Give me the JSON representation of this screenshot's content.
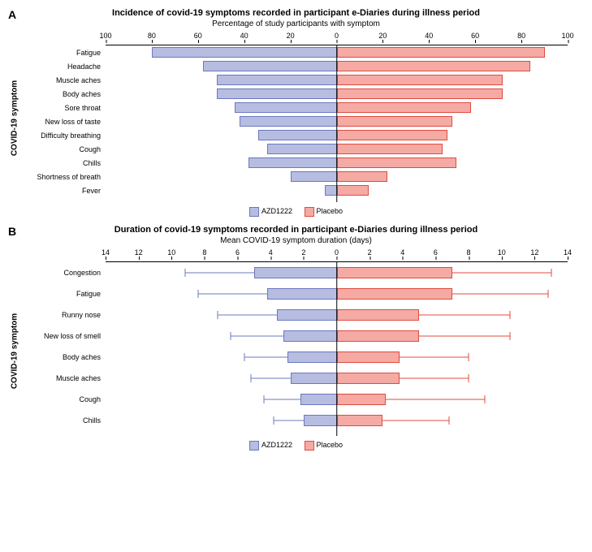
{
  "colors": {
    "azd_fill": "#b6bde0",
    "azd_border": "#6b78c0",
    "placebo_fill": "#f5aaa4",
    "placebo_border": "#e04b3f",
    "background": "#ffffff"
  },
  "panelA": {
    "label": "A",
    "title": "Incidence of covid-19 symptoms recorded in participant e-Diaries during illness period",
    "subtitle": "Percentage of study participants with symptom",
    "y_axis_label": "COVID-19 symptom",
    "type": "diverging-bar",
    "x_max": 100,
    "ticks": [
      100,
      80,
      60,
      40,
      20,
      0,
      20,
      40,
      60,
      80,
      100
    ],
    "legend": {
      "left": "AZD1222",
      "right": "Placebo"
    },
    "rows": [
      {
        "label": "Fatigue",
        "azd": 80,
        "placebo": 90
      },
      {
        "label": "Headache",
        "azd": 58,
        "placebo": 84
      },
      {
        "label": "Muscle aches",
        "azd": 52,
        "placebo": 72
      },
      {
        "label": "Body aches",
        "azd": 52,
        "placebo": 72
      },
      {
        "label": "Sore throat",
        "azd": 44,
        "placebo": 58
      },
      {
        "label": "New loss of taste",
        "azd": 42,
        "placebo": 50
      },
      {
        "label": "Difficulty breathing",
        "azd": 34,
        "placebo": 48
      },
      {
        "label": "Cough",
        "azd": 30,
        "placebo": 46
      },
      {
        "label": "Chills",
        "azd": 38,
        "placebo": 52
      },
      {
        "label": "Shortness of breath",
        "azd": 20,
        "placebo": 22
      },
      {
        "label": "Fever",
        "azd": 5,
        "placebo": 14
      }
    ]
  },
  "panelB": {
    "label": "B",
    "title": "Duration of covid-19 symptoms recorded in participant e-Diaries during illness period",
    "subtitle": "Mean COVID-19 symptom duration (days)",
    "y_axis_label": "COVID-19 symptom",
    "type": "diverging-bar-errorbar",
    "x_max": 14,
    "ticks": [
      14,
      12,
      10,
      8,
      6,
      4,
      2,
      0,
      2,
      4,
      6,
      8,
      10,
      12,
      14
    ],
    "legend": {
      "left": "AZD1222",
      "right": "Placebo"
    },
    "rows": [
      {
        "label": "Congestion",
        "azd_mean": 5.0,
        "azd_lo": 1.0,
        "azd_hi": 9.2,
        "pl_mean": 7.0,
        "pl_lo": 1.0,
        "pl_hi": 13.0
      },
      {
        "label": "Fatigue",
        "azd_mean": 4.2,
        "azd_lo": 0.8,
        "azd_hi": 8.4,
        "pl_mean": 7.0,
        "pl_lo": 1.0,
        "pl_hi": 12.8
      },
      {
        "label": "Runny nose",
        "azd_mean": 3.6,
        "azd_lo": 0.5,
        "azd_hi": 7.2,
        "pl_mean": 5.0,
        "pl_lo": 0.5,
        "pl_hi": 10.5
      },
      {
        "label": "New loss of smell",
        "azd_mean": 3.2,
        "azd_lo": 0.4,
        "azd_hi": 6.4,
        "pl_mean": 5.0,
        "pl_lo": 0.5,
        "pl_hi": 10.5
      },
      {
        "label": "Body aches",
        "azd_mean": 3.0,
        "azd_lo": 0.5,
        "azd_hi": 5.6,
        "pl_mean": 3.8,
        "pl_lo": 0.5,
        "pl_hi": 8.0
      },
      {
        "label": "Muscle aches",
        "azd_mean": 2.8,
        "azd_lo": 0.4,
        "azd_hi": 5.2,
        "pl_mean": 3.8,
        "pl_lo": 0.5,
        "pl_hi": 8.0
      },
      {
        "label": "Cough",
        "azd_mean": 2.2,
        "azd_lo": 0.3,
        "azd_hi": 4.4,
        "pl_mean": 3.0,
        "pl_lo": 0.3,
        "pl_hi": 9.0
      },
      {
        "label": "Chills",
        "azd_mean": 2.0,
        "azd_lo": 0.3,
        "azd_hi": 3.8,
        "pl_mean": 2.8,
        "pl_lo": 0.3,
        "pl_hi": 6.8
      }
    ]
  }
}
